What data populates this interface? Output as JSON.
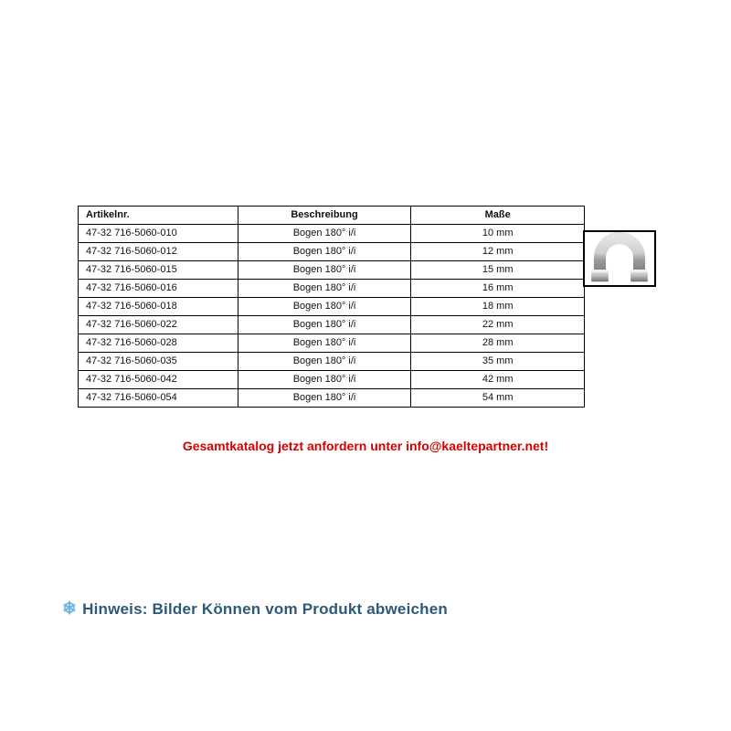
{
  "table": {
    "headers": {
      "article": "Artikelnr.",
      "description": "Beschreibung",
      "dimensions": "Maße"
    },
    "rows": [
      {
        "article": "47-32 716-5060-010",
        "description": "Bogen 180°  i/i",
        "dimensions": "10 mm"
      },
      {
        "article": "47-32 716-5060-012",
        "description": "Bogen 180°  i/i",
        "dimensions": "12 mm"
      },
      {
        "article": "47-32 716-5060-015",
        "description": "Bogen 180°  i/i",
        "dimensions": "15 mm"
      },
      {
        "article": "47-32 716-5060-016",
        "description": "Bogen 180°  i/i",
        "dimensions": "16 mm"
      },
      {
        "article": "47-32 716-5060-018",
        "description": "Bogen 180°  i/i",
        "dimensions": "18 mm"
      },
      {
        "article": "47-32 716-5060-022",
        "description": "Bogen 180°  i/i",
        "dimensions": "22 mm"
      },
      {
        "article": "47-32 716-5060-028",
        "description": "Bogen 180°  i/i",
        "dimensions": "28 mm"
      },
      {
        "article": "47-32 716-5060-035",
        "description": "Bogen 180°  i/i",
        "dimensions": "35 mm"
      },
      {
        "article": "47-32 716-5060-042",
        "description": "Bogen 180°  i/i",
        "dimensions": "42 mm"
      },
      {
        "article": "47-32 716-5060-054",
        "description": "Bogen 180°  i/i",
        "dimensions": "54 mm"
      }
    ]
  },
  "catalog_text": "Gesamtkatalog jetzt anfordern unter info@kaeltepartner.net!",
  "hint_text": "Hinweis: Bilder Können vom Produkt abweichen",
  "colors": {
    "catalog_red": "#d40000",
    "hint_blue": "#2b5a78",
    "snow_blue": "#6fb3e0",
    "border": "#000000",
    "pipe_light": "#d0d0d0",
    "pipe_dark": "#8a8a8a"
  }
}
